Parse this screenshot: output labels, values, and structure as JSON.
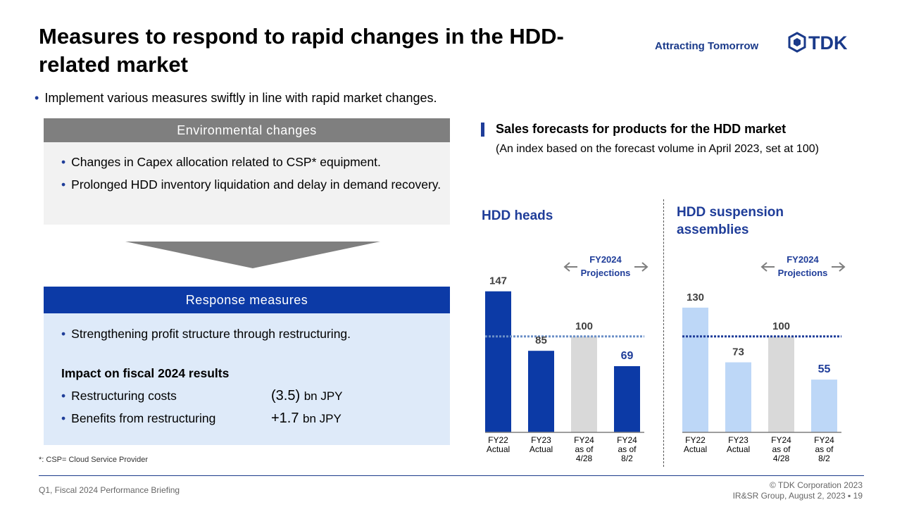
{
  "header": {
    "title": "Measures to respond to rapid changes in the HDD-related market",
    "tagline": "Attracting Tomorrow",
    "logo_text": "TDK"
  },
  "intro_bullet": "Implement  various measures swiftly in line with rapid market changes.",
  "environmental": {
    "heading": "Environmental  changes",
    "items": [
      "Changes  in Capex allocation  related to CSP* equipment.",
      "Prolonged HDD inventory liquidation  and delay in demand recovery."
    ]
  },
  "response": {
    "heading": "Response  measures",
    "item": "Strengthening  profit structure through restructuring.",
    "impact_title": "Impact on fiscal 2024 results",
    "rows": [
      {
        "label": "Restructuring costs",
        "value": "(3.5)",
        "unit": "bn JPY"
      },
      {
        "label": "Benefits from restructuring",
        "value": "+1.7",
        "unit": "bn JPY"
      }
    ]
  },
  "footnote": "*: CSP= Cloud Service Provider",
  "footer": {
    "left": "Q1, Fiscal 2024 Performance  Briefing",
    "copyright": "© TDK Corporation 2023",
    "group": "IR&SR Group, August 2, 2023",
    "page": "19"
  },
  "sales_section": {
    "title": "Sales forecasts for products for the HDD market",
    "subtitle": "(An index based on the forecast volume in April 2023, set at 100)"
  },
  "colors": {
    "brand_blue": "#0c3aa6",
    "heads_blue": "#0c3aa6",
    "suspension_blue": "#bdd7f7",
    "projection_gray": "#d9d9d9",
    "env_gray": "#7f7f7f",
    "response_bg": "#deeaf9"
  },
  "chart_data": [
    {
      "type": "bar",
      "title": "HDD heads",
      "categories": [
        "FY22\nActual",
        "FY23\nActual",
        "FY24\nas of\n4/28",
        "FY24\nas of\n8/2"
      ],
      "values": [
        147,
        85,
        100,
        69
      ],
      "bar_colors": [
        "#0c3aa6",
        "#0c3aa6",
        "#d9d9d9",
        "#0c3aa6"
      ],
      "label_colors": [
        "#404040",
        "#404040",
        "#404040",
        "#1f3d99"
      ],
      "reference_line": 100,
      "annotation": "FY2024\nProjections",
      "ylim": [
        0,
        160
      ]
    },
    {
      "type": "bar",
      "title": "HDD suspension assemblies",
      "categories": [
        "FY22\nActual",
        "FY23\nActual",
        "FY24\nas of\n4/28",
        "FY24\nas of\n8/2"
      ],
      "values": [
        130,
        73,
        100,
        55
      ],
      "bar_colors": [
        "#bdd7f7",
        "#bdd7f7",
        "#d9d9d9",
        "#bdd7f7"
      ],
      "label_colors": [
        "#404040",
        "#404040",
        "#404040",
        "#1f3d99"
      ],
      "reference_line": 100,
      "annotation": "FY2024\nProjections",
      "ylim": [
        0,
        160
      ]
    }
  ]
}
